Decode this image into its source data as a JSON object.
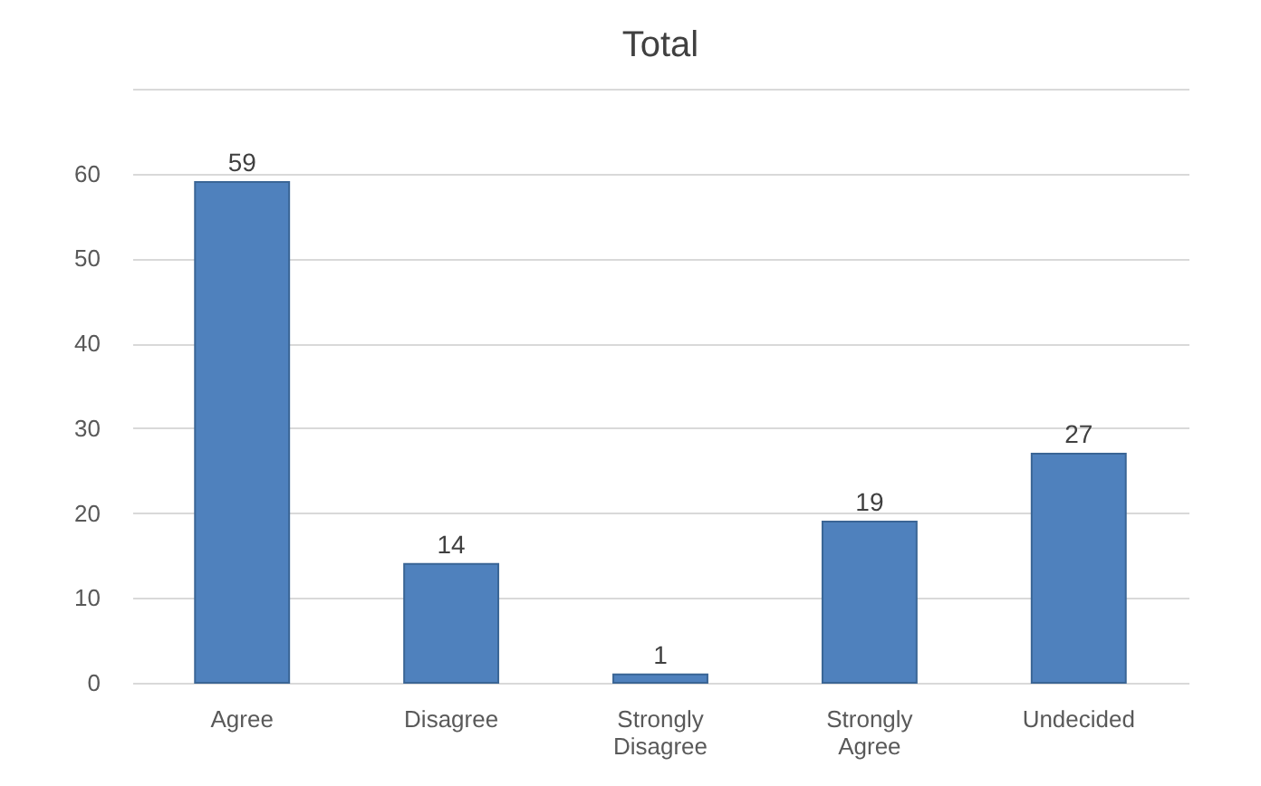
{
  "chart_data": {
    "type": "bar",
    "title": "Total",
    "categories": [
      "Agree",
      "Disagree",
      "Strongly Disagree",
      "Strongly Agree",
      "Undecided"
    ],
    "values": [
      59,
      14,
      1,
      19,
      27
    ],
    "color": "#4f81bd",
    "ylim": [
      0,
      70
    ],
    "yticks": [
      0,
      10,
      20,
      30,
      40,
      50,
      60,
      {
        "value": 70,
        "label": null
      }
    ],
    "grid": "y",
    "data_labels": true
  }
}
